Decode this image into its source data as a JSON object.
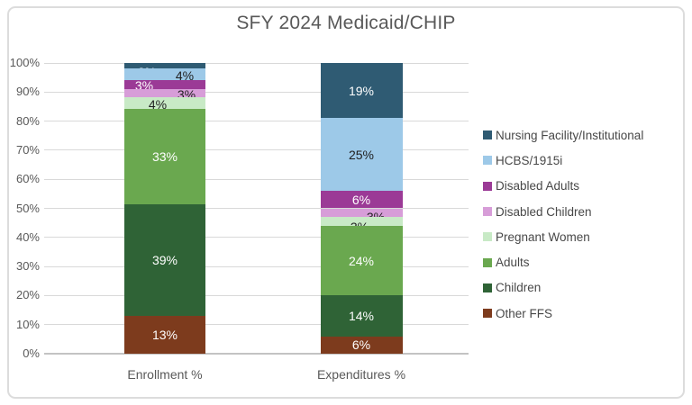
{
  "title": "SFY 2024 Medicaid/CHIP",
  "chart_data": {
    "type": "bar",
    "variant": "stacked-100-percent-column",
    "title": "SFY 2024 Medicaid/CHIP",
    "categories": [
      "Enrollment %",
      "Expenditures %"
    ],
    "series": [
      {
        "name": "Nursing Facility/Institutional",
        "color": "#2F5B73",
        "label_color": "#ffffff",
        "values": [
          2,
          19
        ]
      },
      {
        "name": "HCBS/1915i",
        "color": "#9DC9E8",
        "label_color": "#1f1f1f",
        "values": [
          4,
          25
        ]
      },
      {
        "name": "Disabled Adults",
        "color": "#9B3A96",
        "label_color": "#ffffff",
        "values": [
          3,
          6
        ]
      },
      {
        "name": "Disabled Children",
        "color": "#D79DD8",
        "label_color": "#1f1f1f",
        "values": [
          3,
          3
        ]
      },
      {
        "name": "Pregnant Women",
        "color": "#C8EAC6",
        "label_color": "#1f1f1f",
        "values": [
          4,
          3
        ]
      },
      {
        "name": "Adults",
        "color": "#6AA84F",
        "label_color": "#ffffff",
        "values": [
          33,
          24
        ]
      },
      {
        "name": "Children",
        "color": "#2F6336",
        "label_color": "#ffffff",
        "values": [
          39,
          14
        ]
      },
      {
        "name": "Other FFS",
        "color": "#7D3B1D",
        "label_color": "#ffffff",
        "values": [
          13,
          6
        ]
      }
    ],
    "data_labels": [
      [
        "2%",
        "4%",
        "3%",
        "3%",
        "4%",
        "33%",
        "39%",
        "13%"
      ],
      [
        "19%",
        "25%",
        "6%",
        "3%",
        "3%",
        "24%",
        "14%",
        "6%"
      ]
    ],
    "y_ticks": [
      "100%",
      "90%",
      "80%",
      "70%",
      "60%",
      "50%",
      "40%",
      "30%",
      "20%",
      "10%",
      "0%"
    ],
    "ylim": [
      0,
      100
    ],
    "grid": true,
    "legend_position": "right",
    "colors": {
      "title_text": "#595959",
      "axis_text": "#595959",
      "gridline": "#d9d9d9",
      "axis_line": "#c3c3c3",
      "card_border": "#dcdcdc",
      "background": "#ffffff"
    }
  }
}
